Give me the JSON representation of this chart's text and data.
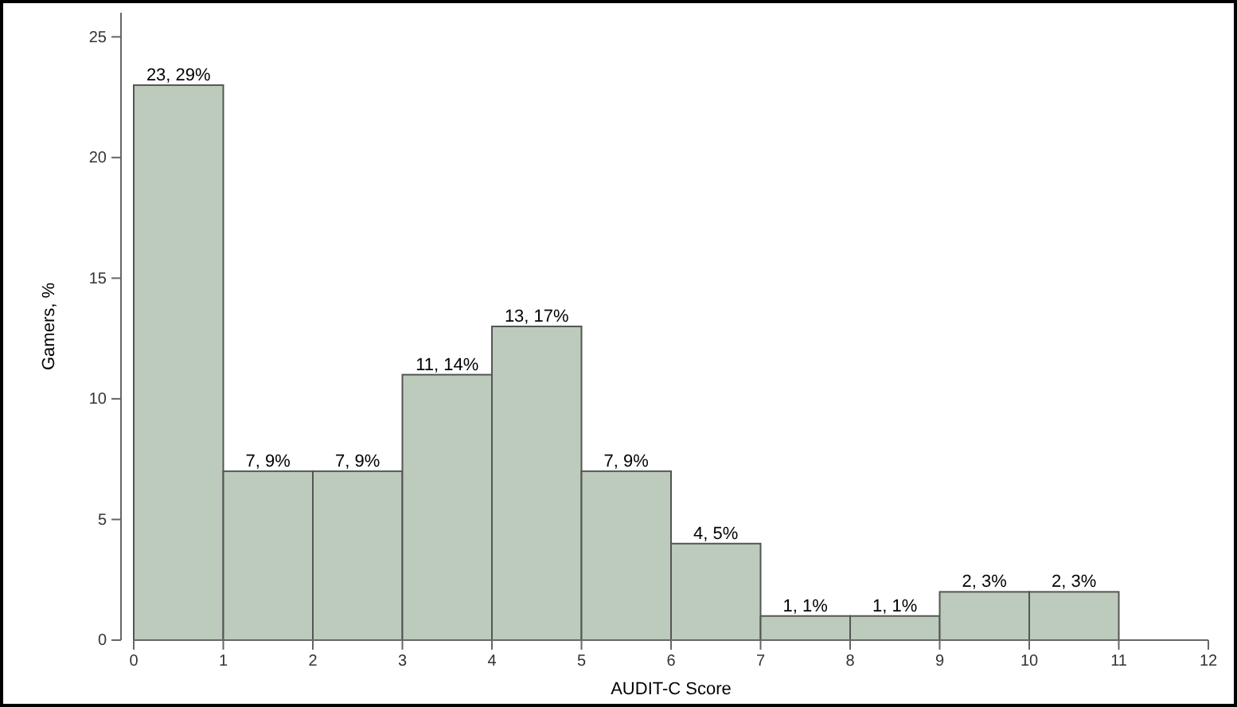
{
  "chart_data": {
    "type": "histogram",
    "xlabel": "AUDIT-C Score",
    "ylabel": "Gamers, %",
    "bins": [
      0,
      1,
      2,
      3,
      4,
      5,
      6,
      7,
      8,
      9,
      10,
      11
    ],
    "values": [
      23,
      7,
      7,
      11,
      13,
      7,
      4,
      1,
      1,
      2,
      2
    ],
    "value_labels": [
      "23, 29%",
      "7, 9%",
      "7, 9%",
      "11, 14%",
      "13, 17%",
      "7, 9%",
      "4, 5%",
      "1, 1%",
      "1, 1%",
      "2, 3%",
      "2, 3%"
    ],
    "color": "#bccbbb",
    "xlim": [
      0,
      12
    ],
    "xticks": [
      0,
      1,
      2,
      3,
      4,
      5,
      6,
      7,
      8,
      9,
      10,
      11,
      12
    ],
    "ylim": [
      0,
      26
    ],
    "yticks": [
      0,
      5,
      10,
      15,
      20,
      25
    ],
    "grid": false
  }
}
